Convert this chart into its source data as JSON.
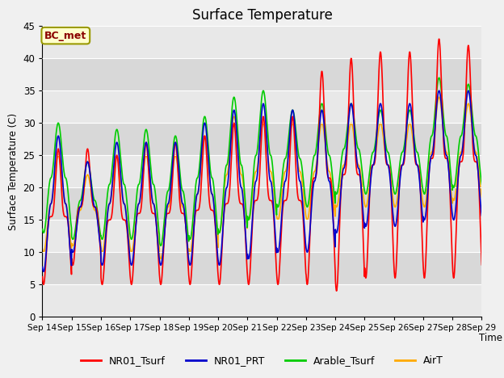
{
  "title": "Surface Temperature",
  "ylabel": "Surface Temperature (C)",
  "xlabel": "Time",
  "annotation": "BC_met",
  "ylim": [
    0,
    45
  ],
  "figsize": [
    6.4,
    4.8
  ],
  "dpi": 100,
  "series": {
    "NR01_Tsurf": {
      "color": "#ff0000",
      "lw": 1.2
    },
    "NR01_PRT": {
      "color": "#0000cc",
      "lw": 1.2
    },
    "Arable_Tsurf": {
      "color": "#00cc00",
      "lw": 1.2
    },
    "AirT": {
      "color": "#ffaa00",
      "lw": 1.2
    }
  },
  "xtick_labels": [
    "Sep 14",
    "Sep 15",
    "Sep 16",
    "Sep 17",
    "Sep 18",
    "Sep 19",
    "Sep 20",
    "Sep 21",
    "Sep 22",
    "Sep 23",
    "Sep 24",
    "Sep 25",
    "Sep 26",
    "Sep 27",
    "Sep 28",
    "Sep 29"
  ],
  "yticks": [
    0,
    5,
    10,
    15,
    20,
    25,
    30,
    35,
    40,
    45
  ],
  "n_days": 15,
  "samples_per_day": 144,
  "grid_band_colors": [
    "#e8e8e8",
    "#d8d8d8"
  ]
}
